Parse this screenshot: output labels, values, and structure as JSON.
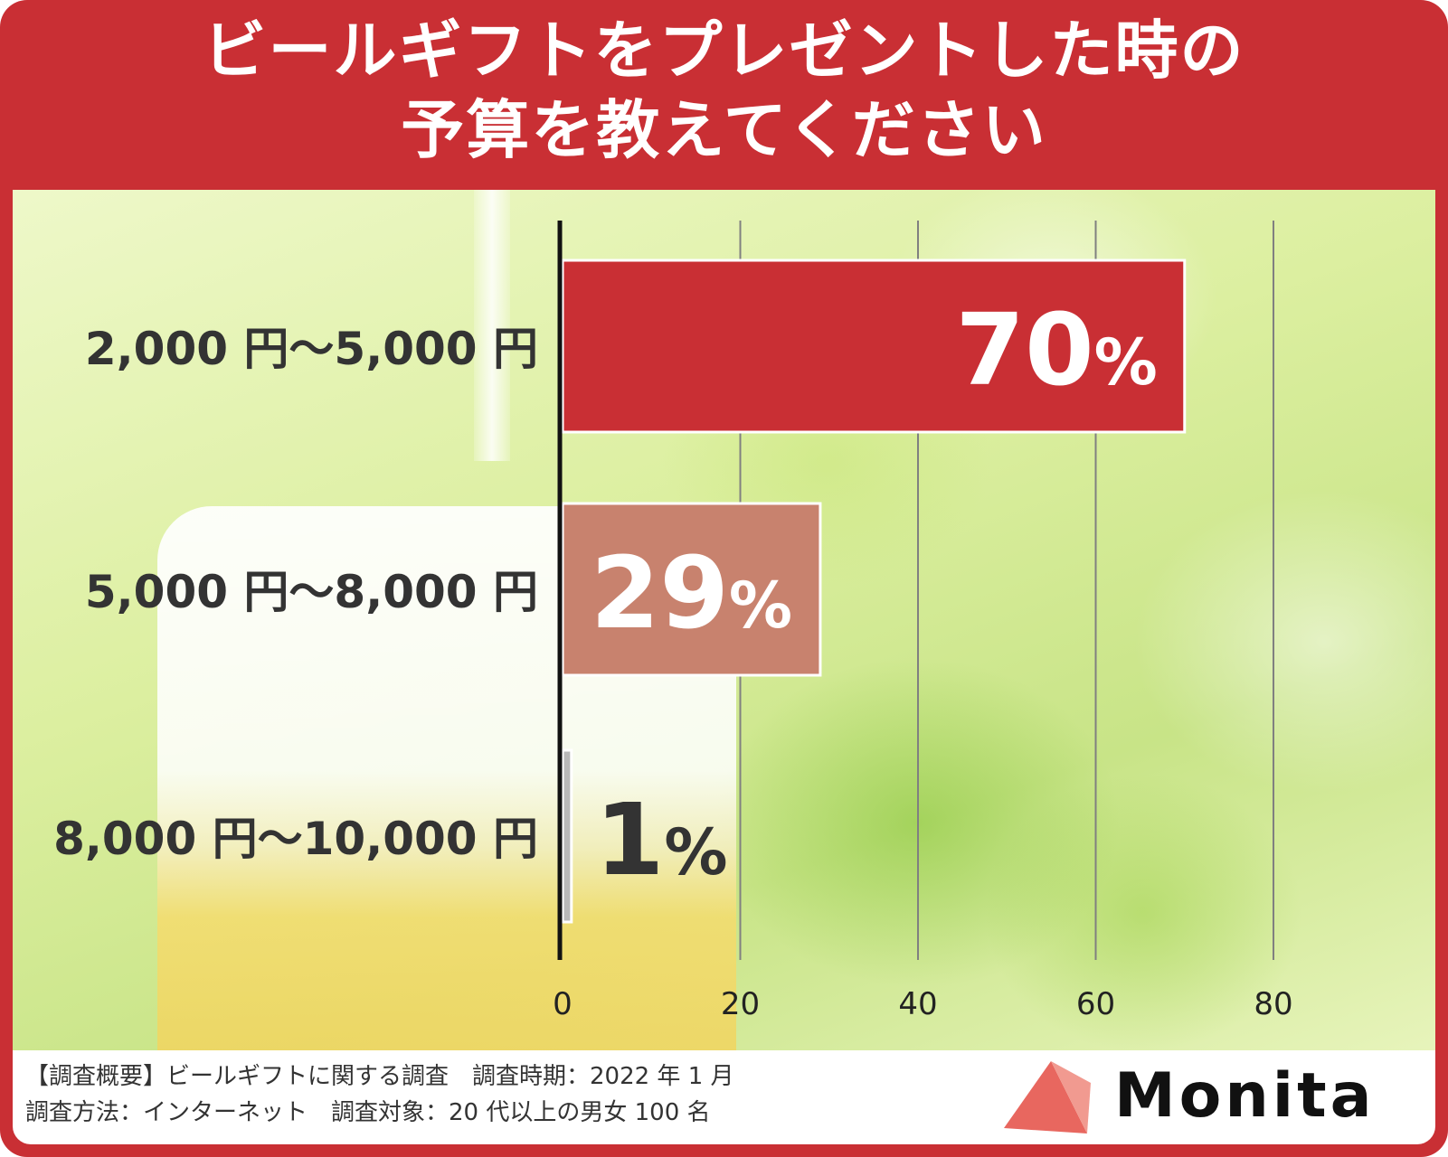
{
  "title": {
    "line1": "ビールギフトをプレゼントした時の",
    "line2": "予算を教えてください"
  },
  "colors": {
    "frame": "#c92f34",
    "bar_primary": "#c92f34",
    "bar_secondary": "#c8826e",
    "bar_tertiary": "#b8b8b8",
    "category_text": "#333333",
    "gridline": "#808080",
    "axis": "#111111"
  },
  "chart_data": {
    "type": "bar",
    "orientation": "horizontal",
    "categories": [
      "2,000 円〜5,000 円",
      "5,000 円〜8,000 円",
      "8,000 円〜10,000 円"
    ],
    "values": [
      70,
      29,
      1
    ],
    "data_labels": [
      "70%",
      "29%",
      "1%"
    ],
    "xticks": [
      0,
      20,
      40,
      60,
      80
    ],
    "xlim": [
      0,
      80
    ],
    "grid": true,
    "legend": "none"
  },
  "footer": {
    "line1": "【調査概要】ビールギフトに関する調査　調査時期：2022 年 1 月",
    "line2": "調査方法：インターネット　調査対象：20 代以上の男女 100 名"
  },
  "logo": {
    "text": "Monita"
  }
}
